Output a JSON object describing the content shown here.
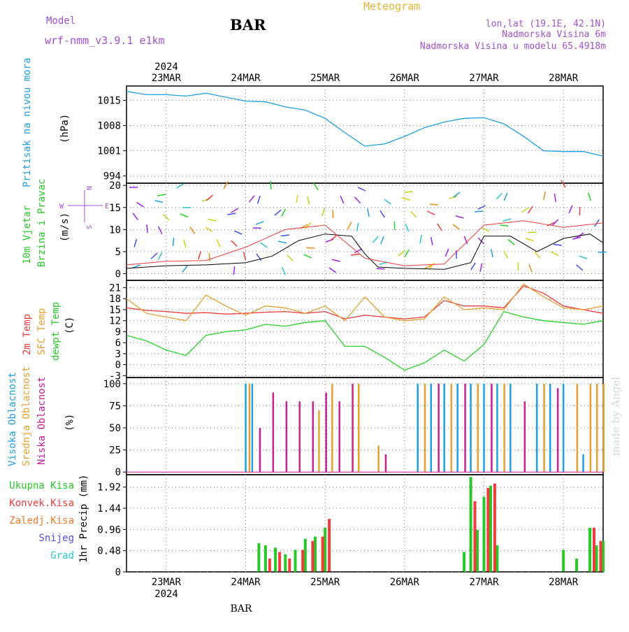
{
  "header": {
    "model_label": "Model",
    "model_name": "wrf-nmm_v3.9.1 e1km",
    "station": "BAR",
    "title": "Meteogram",
    "coords": "lon,lat (19.1E, 42.1N)",
    "elevation": "Nadmorska Visina 6m",
    "model_elevation": "Nadmorska Visina u modelu 65.4918m"
  },
  "footer": {
    "station": "BAR",
    "watermark": "made by Angel"
  },
  "colors": {
    "pressure": "#1ea0e6",
    "temp2m": "#f03c3c",
    "sfc": "#e6a032",
    "dew": "#28d228",
    "cloud_high": "#1ea0e6",
    "cloud_mid": "#e6a032",
    "cloud_low": "#c81e96",
    "precip_total": "#28c828",
    "precip_conv": "#f03c3c",
    "precip_frozen": "#f07828",
    "snow": "#5050f0",
    "hail": "#28c8c8",
    "label_purple": "#a050d2"
  },
  "chart_data": [
    {
      "type": "line",
      "x_axis": {
        "unit": "day",
        "range": [
          "2024-03-22T12",
          "2024-03-28T12"
        ],
        "top_labels": [
          {
            "day": "23MAR",
            "x": "2024-03-23"
          },
          {
            "day": "24MAR",
            "x": "2024-03-24"
          },
          {
            "day": "25MAR",
            "x": "2024-03-25"
          },
          {
            "day": "26MAR",
            "x": "2024-03-26"
          },
          {
            "day": "27MAR",
            "x": "2024-03-27"
          },
          {
            "day": "28MAR",
            "x": "2024-03-28"
          }
        ],
        "year": "2024"
      },
      "ylabel_name": "Pritisak na nivou mora",
      "ylabel_unit": "(hPa)",
      "yticks": [
        "1015",
        "1008",
        "1001",
        "994"
      ],
      "ylim": [
        992,
        1019
      ],
      "series": [
        {
          "name": "Pritisak na nivou mora",
          "x": [
            "2024-03-22T12",
            "2024-03-22T18",
            "2024-03-23T00",
            "2024-03-23T06",
            "2024-03-23T12",
            "2024-03-23T18",
            "2024-03-24T00",
            "2024-03-24T06",
            "2024-03-24T12",
            "2024-03-24T18",
            "2024-03-25T00",
            "2024-03-25T06",
            "2024-03-25T12",
            "2024-03-25T18",
            "2024-03-26T00",
            "2024-03-26T06",
            "2024-03-26T12",
            "2024-03-26T18",
            "2024-03-27T00",
            "2024-03-27T06",
            "2024-03-27T12",
            "2024-03-27T18",
            "2024-03-28T00",
            "2024-03-28T06",
            "2024-03-28T12"
          ],
          "values": [
            1017.5,
            1016.6,
            1016.6,
            1016.2,
            1017.0,
            1015.9,
            1014.8,
            1014.6,
            1013.2,
            1012.3,
            1010.0,
            1006.0,
            1002.3,
            1002.9,
            1005.0,
            1007.4,
            1009.0,
            1010.0,
            1010.2,
            1008.5,
            1005.0,
            1001.0,
            1000.8,
            1000.8,
            999.5
          ]
        }
      ]
    },
    {
      "type": "line",
      "ylabel_name": "10m Vjetar",
      "ylabel_name2": "Brzina i Pravac",
      "ylabel_unit": "(m/s)",
      "direction_legend": {
        "n": "N",
        "s": "S",
        "w": "W",
        "e": "E"
      },
      "yticks": [
        "20",
        "15",
        "10",
        "5",
        "0"
      ],
      "ylim": [
        -1.5,
        20.5
      ],
      "series": [
        {
          "name": "wind speed",
          "x": [
            "2024-03-22T12",
            "2024-03-23T00",
            "2024-03-23T12",
            "2024-03-24T00",
            "2024-03-24T08",
            "2024-03-24T16",
            "2024-03-25T00",
            "2024-03-25T08",
            "2024-03-25T12",
            "2024-03-25T16",
            "2024-03-26T00",
            "2024-03-26T12",
            "2024-03-26T20",
            "2024-03-27T00",
            "2024-03-27T08",
            "2024-03-27T16",
            "2024-03-28T00",
            "2024-03-28T08",
            "2024-03-28T12"
          ],
          "values": [
            1.2,
            1.8,
            2.0,
            2.5,
            4.0,
            7.5,
            9.0,
            8.5,
            4.5,
            1.5,
            1.2,
            1.0,
            2.5,
            8.5,
            8.5,
            5.0,
            8.0,
            9.0,
            7.0
          ]
        },
        {
          "name": "gust",
          "x": [
            "2024-03-22T12",
            "2024-03-23T00",
            "2024-03-23T12",
            "2024-03-24T00",
            "2024-03-24T12",
            "2024-03-25T00",
            "2024-03-25T12",
            "2024-03-26T00",
            "2024-03-26T12",
            "2024-03-27T00",
            "2024-03-27T12",
            "2024-03-28T00",
            "2024-03-28T12"
          ],
          "values": [
            2.0,
            2.8,
            3.0,
            6.0,
            10.0,
            11.0,
            3.5,
            1.8,
            2.2,
            11.0,
            12.0,
            10.5,
            11.5
          ]
        }
      ]
    },
    {
      "type": "line",
      "ylabel_names": [
        "2m Temp",
        "SFC Temp",
        "dewpt Temp"
      ],
      "ylabel_unit": "(C)",
      "yticks": [
        "21",
        "18",
        "15",
        "12",
        "9",
        "6",
        "3",
        "0",
        "-3"
      ],
      "ylim": [
        -3.5,
        23
      ],
      "series": [
        {
          "name": "2m Temp",
          "x": [
            "2024-03-22T12",
            "2024-03-22T18",
            "2024-03-23T00",
            "2024-03-23T06",
            "2024-03-23T12",
            "2024-03-23T18",
            "2024-03-24T00",
            "2024-03-24T06",
            "2024-03-24T12",
            "2024-03-24T18",
            "2024-03-25T00",
            "2024-03-25T06",
            "2024-03-25T12",
            "2024-03-25T18",
            "2024-03-26T00",
            "2024-03-26T06",
            "2024-03-26T12",
            "2024-03-26T18",
            "2024-03-27T00",
            "2024-03-27T06",
            "2024-03-27T12",
            "2024-03-27T18",
            "2024-03-28T00",
            "2024-03-28T06",
            "2024-03-28T12"
          ],
          "values": [
            15.5,
            14.8,
            14.5,
            14.0,
            14.2,
            13.8,
            14.0,
            14.3,
            14.5,
            14.0,
            14.5,
            12.5,
            13.5,
            13.0,
            12.5,
            13.0,
            17.5,
            16.0,
            16.0,
            15.5,
            21.5,
            19.5,
            16.0,
            15.0,
            14.0
          ]
        },
        {
          "name": "SFC Temp",
          "x": [
            "2024-03-22T12",
            "2024-03-22T18",
            "2024-03-23T00",
            "2024-03-23T06",
            "2024-03-23T12",
            "2024-03-23T18",
            "2024-03-24T00",
            "2024-03-24T06",
            "2024-03-24T12",
            "2024-03-24T18",
            "2024-03-25T00",
            "2024-03-25T06",
            "2024-03-25T12",
            "2024-03-25T18",
            "2024-03-26T00",
            "2024-03-26T06",
            "2024-03-26T12",
            "2024-03-26T18",
            "2024-03-27T00",
            "2024-03-27T06",
            "2024-03-27T12",
            "2024-03-27T18",
            "2024-03-28T00",
            "2024-03-28T06",
            "2024-03-28T12"
          ],
          "values": [
            18.0,
            14.0,
            13.0,
            12.0,
            19.0,
            16.0,
            13.5,
            16.0,
            15.5,
            14.0,
            16.0,
            12.0,
            18.5,
            13.0,
            12.0,
            12.5,
            18.5,
            15.0,
            15.5,
            15.0,
            22.0,
            18.5,
            15.5,
            15.0,
            16.0
          ]
        },
        {
          "name": "dewpt Temp",
          "x": [
            "2024-03-22T12",
            "2024-03-22T18",
            "2024-03-23T00",
            "2024-03-23T06",
            "2024-03-23T12",
            "2024-03-23T18",
            "2024-03-24T00",
            "2024-03-24T06",
            "2024-03-24T12",
            "2024-03-24T18",
            "2024-03-25T00",
            "2024-03-25T06",
            "2024-03-25T12",
            "2024-03-25T18",
            "2024-03-26T00",
            "2024-03-26T06",
            "2024-03-26T12",
            "2024-03-26T18",
            "2024-03-27T00",
            "2024-03-27T06",
            "2024-03-27T12",
            "2024-03-27T18",
            "2024-03-28T00",
            "2024-03-28T06",
            "2024-03-28T12"
          ],
          "values": [
            8.0,
            6.5,
            4.0,
            2.5,
            8.0,
            9.0,
            9.5,
            11.0,
            10.5,
            11.5,
            12.0,
            5.0,
            5.0,
            2.0,
            -1.5,
            0.5,
            4.0,
            1.0,
            5.5,
            14.5,
            13.0,
            12.0,
            11.5,
            11.0,
            12.0
          ]
        }
      ]
    },
    {
      "type": "bar",
      "ylabel_names": [
        "Visoka Oblacnost",
        "Srednja Oblacnost",
        "Niska Oblacnost"
      ],
      "ylabel_unit": "(%)",
      "yticks": [
        "100",
        "75",
        "50",
        "25",
        "0"
      ],
      "ylim": [
        -3,
        107
      ],
      "series": [
        {
          "name": "Visoka Oblacnost",
          "x": [
            "2024-03-24T00",
            "2024-03-24T02",
            "2024-03-26T04",
            "2024-03-26T08",
            "2024-03-26T12",
            "2024-03-26T16",
            "2024-03-26T20",
            "2024-03-27T00",
            "2024-03-27T04",
            "2024-03-27T08",
            "2024-03-27T16",
            "2024-03-27T20",
            "2024-03-28T00",
            "2024-03-28T06"
          ],
          "values": [
            100,
            100,
            100,
            100,
            100,
            100,
            100,
            100,
            100,
            100,
            100,
            100,
            100,
            20
          ]
        },
        {
          "name": "Srednja Oblacnost",
          "x": [
            "2024-03-24T01",
            "2024-03-24T22",
            "2024-03-25T02",
            "2024-03-25T10",
            "2024-03-25T16",
            "2024-03-26T06",
            "2024-03-26T14",
            "2024-03-26T22",
            "2024-03-27T06",
            "2024-03-27T18",
            "2024-03-28T04",
            "2024-03-28T08",
            "2024-03-28T10",
            "2024-03-28T12"
          ],
          "values": [
            100,
            70,
            100,
            100,
            30,
            100,
            100,
            100,
            100,
            100,
            100,
            100,
            100,
            100
          ]
        },
        {
          "name": "Niska Oblacnost",
          "x": [
            "2024-03-24T04",
            "2024-03-24T08",
            "2024-03-24T12",
            "2024-03-24T16",
            "2024-03-24T20",
            "2024-03-25T00",
            "2024-03-25T04",
            "2024-03-25T08",
            "2024-03-25T18",
            "2024-03-26T10",
            "2024-03-26T18",
            "2024-03-27T02",
            "2024-03-27T12",
            "2024-03-27T22"
          ],
          "values": [
            50,
            90,
            80,
            80,
            80,
            90,
            80,
            100,
            20,
            100,
            100,
            100,
            80,
            95
          ]
        }
      ]
    },
    {
      "type": "bar",
      "ylabel_name": "1hr Precip (mm)",
      "legend": [
        "Ukupna Kisa",
        "Konvek.Kisa",
        "Zaledj.Kisa",
        "Snijeg",
        "Grad"
      ],
      "yticks": [
        "1.92",
        "1.44",
        "0.96",
        "0.48",
        "0"
      ],
      "ylim": [
        0,
        2.2
      ],
      "bottom_labels": [
        {
          "day": "23MAR",
          "x": "2024-03-23"
        },
        {
          "day": "24MAR",
          "x": "2024-03-24"
        },
        {
          "day": "25MAR",
          "x": "2024-03-25"
        },
        {
          "day": "26MAR",
          "x": "2024-03-26"
        },
        {
          "day": "27MAR",
          "x": "2024-03-27"
        },
        {
          "day": "28MAR",
          "x": "2024-03-28"
        }
      ],
      "series": [
        {
          "name": "Ukupna Kisa",
          "x": [
            "2024-03-24T04",
            "2024-03-24T06",
            "2024-03-24T09",
            "2024-03-24T12",
            "2024-03-24T15",
            "2024-03-24T18",
            "2024-03-24T21",
            "2024-03-25T00",
            "2024-03-26T18",
            "2024-03-26T20",
            "2024-03-26T22",
            "2024-03-27T00",
            "2024-03-27T02",
            "2024-03-27T04",
            "2024-03-28T00",
            "2024-03-28T04",
            "2024-03-28T08",
            "2024-03-28T10",
            "2024-03-28T12"
          ],
          "values": [
            0.65,
            0.6,
            0.55,
            0.4,
            0.5,
            0.75,
            0.8,
            1.0,
            0.45,
            2.15,
            0.95,
            1.7,
            1.95,
            0.6,
            0.5,
            0.3,
            1.0,
            0.6,
            0.7
          ]
        },
        {
          "name": "Konvek.Kisa",
          "x": [
            "2024-03-24T07",
            "2024-03-24T10",
            "2024-03-24T13",
            "2024-03-24T17",
            "2024-03-24T20",
            "2024-03-24T23",
            "2024-03-25T01",
            "2024-03-26T21",
            "2024-03-27T01",
            "2024-03-27T03",
            "2024-03-28T09",
            "2024-03-28T11"
          ],
          "values": [
            0.3,
            0.45,
            0.3,
            0.5,
            0.7,
            0.8,
            1.2,
            1.6,
            1.9,
            2.0,
            1.0,
            0.7
          ]
        }
      ]
    }
  ]
}
